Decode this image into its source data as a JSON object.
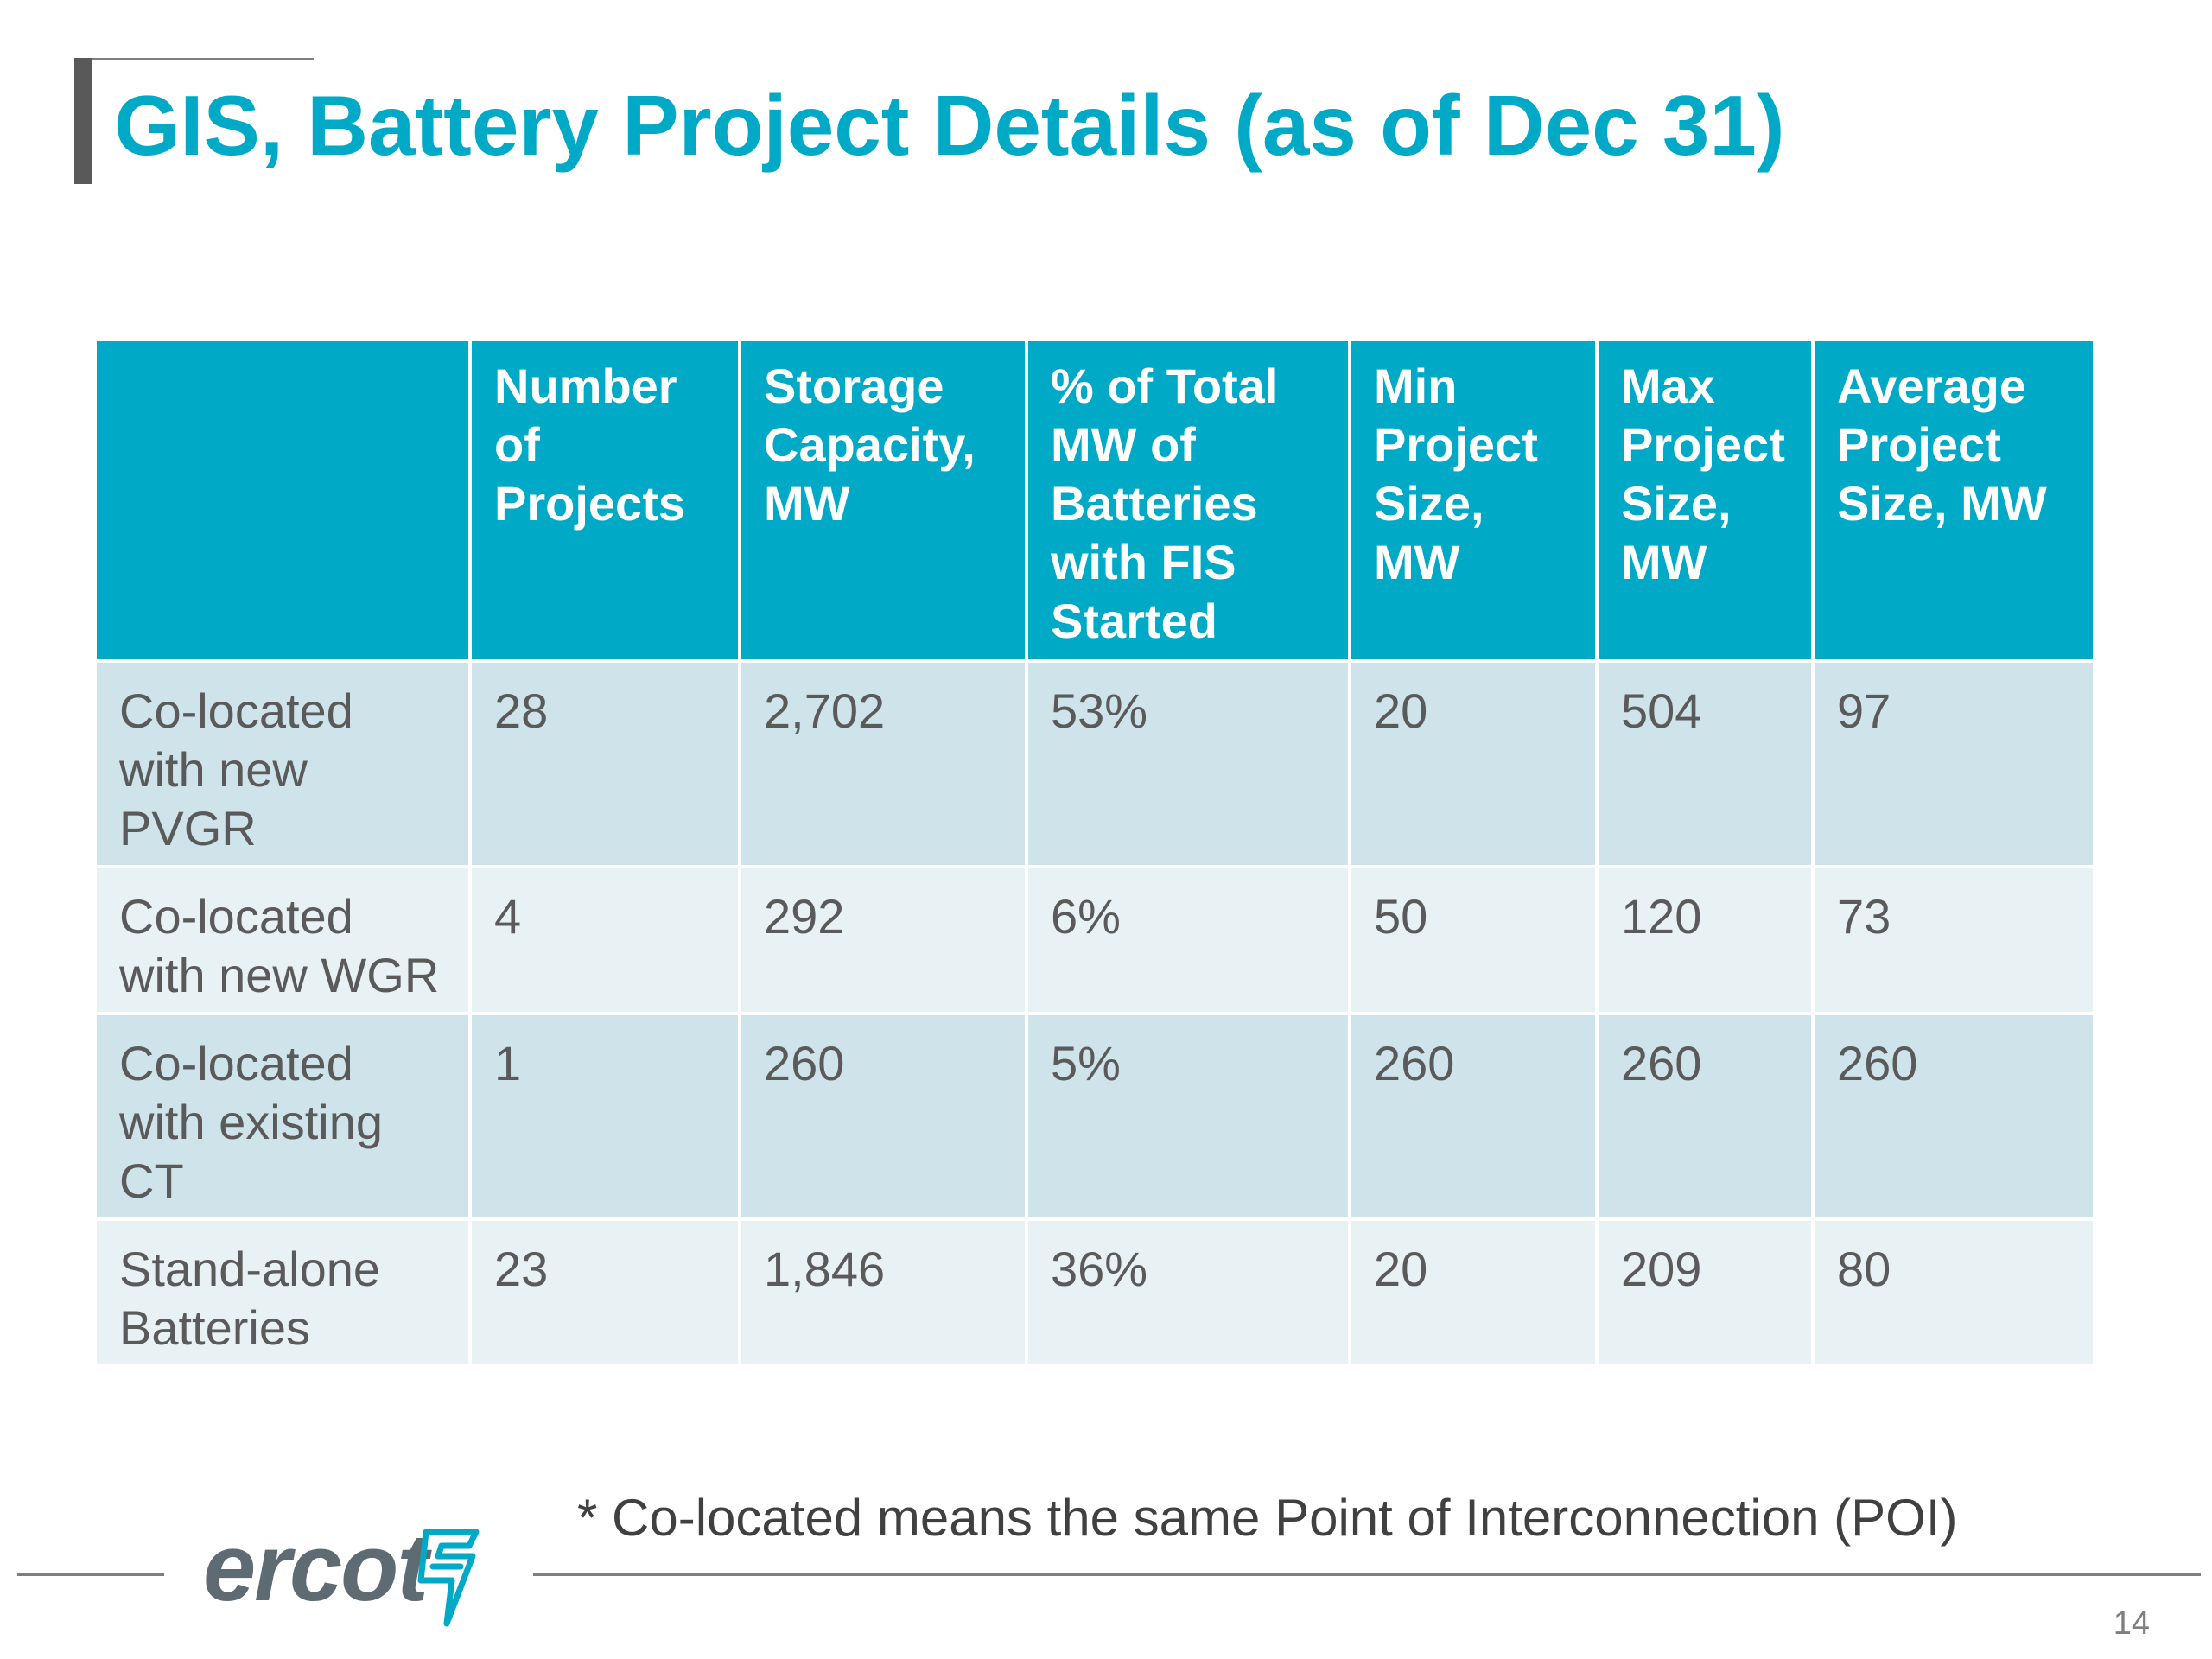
{
  "slide": {
    "title": "GIS, Battery Project Details (as of Dec 31)",
    "footnote": "* Co-located means the same Point of Interconnection (POI)",
    "page_number": "14"
  },
  "brand": {
    "logo_text": "ercot",
    "logo_icon": "lightning-bolt-icon",
    "accent_color": "#00a9c5"
  },
  "table": {
    "headers": [
      "",
      "Number of Projects",
      "Storage Capacity, MW",
      "% of Total MW of Batteries with FIS Started",
      "Min Project Size, MW",
      "Max Project Size, MW",
      "Average Project Size, MW"
    ],
    "rows": [
      [
        "Co-located with new PVGR",
        "28",
        "2,702",
        "53%",
        "20",
        "504",
        "97"
      ],
      [
        "Co-located with new WGR",
        "4",
        "292",
        "6%",
        "50",
        "120",
        "73"
      ],
      [
        "Co-located with existing CT",
        "1",
        "260",
        "5%",
        "260",
        "260",
        "260"
      ],
      [
        "Stand-alone Batteries",
        "23",
        "1,846",
        "36%",
        "20",
        "209",
        "80"
      ]
    ]
  }
}
